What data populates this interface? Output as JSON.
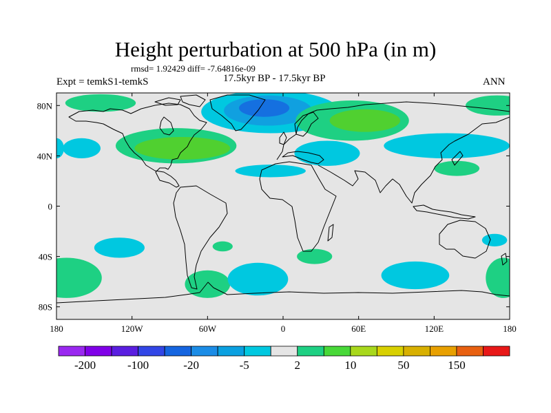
{
  "header": {
    "title": "Height perturbation at 500 hPa (in m)",
    "stats": "rmsd= 1.92429 diff= -7.64816e-09",
    "left_label": "Expt = temkS1-temkS",
    "center_label": "17.5kyr BP - 17.5kyr BP",
    "right_label": "ANN"
  },
  "map": {
    "lon_range": [
      -180,
      180
    ],
    "lat_range": [
      -90,
      90
    ],
    "x_ticks": [
      {
        "lon": -180,
        "label": "180"
      },
      {
        "lon": -120,
        "label": "120W"
      },
      {
        "lon": -60,
        "label": "60W"
      },
      {
        "lon": 0,
        "label": "0"
      },
      {
        "lon": 60,
        "label": "60E"
      },
      {
        "lon": 120,
        "label": "120E"
      },
      {
        "lon": 180,
        "label": "180"
      }
    ],
    "y_ticks": [
      {
        "lat": 80,
        "label": "80N"
      },
      {
        "lat": 40,
        "label": "40N"
      },
      {
        "lat": 0,
        "label": "0"
      },
      {
        "lat": -40,
        "label": "40S"
      },
      {
        "lat": -80,
        "label": "80S"
      }
    ],
    "background_color": "#e5e5e5",
    "anomalies": [
      {
        "lon": -145,
        "lat": 82,
        "rlon": 28,
        "rlat": 7,
        "class": "10",
        "color": "#1ed083"
      },
      {
        "lon": -10,
        "lat": 75,
        "rlon": 55,
        "rlat": 17,
        "class": "-5",
        "color": "#00c8e0"
      },
      {
        "lon": -12,
        "lat": 76,
        "rlon": 35,
        "rlat": 12,
        "class": "-20",
        "color": "#10a0e0"
      },
      {
        "lon": -15,
        "lat": 78,
        "rlon": 20,
        "rlat": 7,
        "class": "-100",
        "color": "#1570e0"
      },
      {
        "lon": 55,
        "lat": 68,
        "rlon": 45,
        "rlat": 16,
        "class": "10",
        "color": "#1ed083"
      },
      {
        "lon": 65,
        "lat": 68,
        "rlon": 28,
        "rlat": 9,
        "class": "50",
        "color": "#50d030"
      },
      {
        "lon": -160,
        "lat": 46,
        "rlon": 15,
        "rlat": 8,
        "class": "-5",
        "color": "#00c8e0"
      },
      {
        "lon": -180,
        "lat": 46,
        "rlon": 6,
        "rlat": 8,
        "class": "-5",
        "color": "#00c8e0"
      },
      {
        "lon": -85,
        "lat": 48,
        "rlon": 48,
        "rlat": 14,
        "class": "10",
        "color": "#1ed083"
      },
      {
        "lon": -80,
        "lat": 46,
        "rlon": 38,
        "rlat": 9,
        "class": "50",
        "color": "#50d030"
      },
      {
        "lon": 35,
        "lat": 42,
        "rlon": 26,
        "rlat": 10,
        "class": "-5",
        "color": "#00c8e0"
      },
      {
        "lon": 130,
        "lat": 48,
        "rlon": 50,
        "rlat": 10,
        "class": "-5",
        "color": "#00c8e0"
      },
      {
        "lon": 170,
        "lat": 80,
        "rlon": 25,
        "rlat": 8,
        "class": "10",
        "color": "#1ed083"
      },
      {
        "lon": 138,
        "lat": 30,
        "rlon": 18,
        "rlat": 6,
        "class": "10",
        "color": "#1ed083"
      },
      {
        "lon": -10,
        "lat": 28,
        "rlon": 28,
        "rlat": 5,
        "class": "-5",
        "color": "#00c8e0"
      },
      {
        "lon": -130,
        "lat": -33,
        "rlon": 20,
        "rlat": 8,
        "class": "-5",
        "color": "#00c8e0"
      },
      {
        "lon": -48,
        "lat": -32,
        "rlon": 8,
        "rlat": 4,
        "class": "10",
        "color": "#1ed083"
      },
      {
        "lon": -60,
        "lat": -62,
        "rlon": 18,
        "rlat": 11,
        "class": "10",
        "color": "#1ed083"
      },
      {
        "lon": -20,
        "lat": -58,
        "rlon": 24,
        "rlat": 13,
        "class": "-5",
        "color": "#00c8e0"
      },
      {
        "lon": 25,
        "lat": -40,
        "rlon": 14,
        "rlat": 6,
        "class": "10",
        "color": "#1ed083"
      },
      {
        "lon": 105,
        "lat": -55,
        "rlon": 27,
        "rlat": 11,
        "class": "-5",
        "color": "#00c8e0"
      },
      {
        "lon": 168,
        "lat": -27,
        "rlon": 10,
        "rlat": 5,
        "class": "-5",
        "color": "#00c8e0"
      },
      {
        "lon": -172,
        "lat": -57,
        "rlon": 28,
        "rlat": 16,
        "class": "10",
        "color": "#1ed083"
      },
      {
        "lon": 175,
        "lat": -57,
        "rlon": 14,
        "rlat": 16,
        "class": "10",
        "color": "#1ed083"
      }
    ]
  },
  "colorbar": {
    "colors": [
      "#9a28f0",
      "#8000e8",
      "#5a1ee0",
      "#3246e6",
      "#1565e0",
      "#1b8ce6",
      "#0aa0e0",
      "#00c8e0",
      "#e5e5e5",
      "#1ed083",
      "#48d838",
      "#a8d81c",
      "#d8d000",
      "#d8b000",
      "#e8a000",
      "#e86010",
      "#e81818"
    ],
    "labels": [
      {
        "after_box": 1,
        "text": "-200"
      },
      {
        "after_box": 3,
        "text": "-100"
      },
      {
        "after_box": 5,
        "text": "-20"
      },
      {
        "after_box": 7,
        "text": "-5"
      },
      {
        "after_box": 9,
        "text": "2"
      },
      {
        "after_box": 11,
        "text": "10"
      },
      {
        "after_box": 13,
        "text": "50"
      },
      {
        "after_box": 15,
        "text": "150"
      }
    ]
  }
}
